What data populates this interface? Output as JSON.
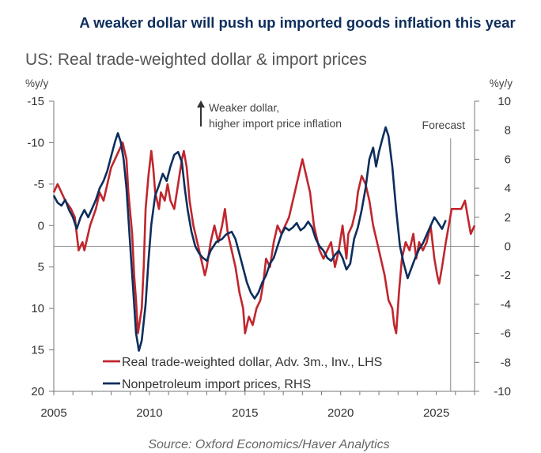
{
  "headline": "A weaker dollar will push up imported goods inflation this year",
  "source": "Source: Oxford Economics/Haver Analytics",
  "colors": {
    "dollar": "#c0262d",
    "imports": "#0d2e5c",
    "headline": "#0d2e5c",
    "axis": "#777777"
  },
  "chart_data": {
    "type": "line",
    "title": "US: Real trade-weighted dollar & import prices",
    "left_unit": "%y/y",
    "right_unit": "%y/y",
    "left_axis": {
      "inverted": true,
      "range": [
        -15,
        20
      ],
      "ticks": [
        -15,
        -10,
        -5,
        0,
        5,
        10,
        15,
        20
      ],
      "tick_labels": [
        "-15",
        "-10",
        "-5",
        "0",
        "5",
        "10",
        "15",
        "20"
      ]
    },
    "right_axis": {
      "range": [
        -10,
        10
      ],
      "ticks": [
        10,
        8,
        6,
        4,
        2,
        0,
        -2,
        -4,
        -6,
        -8,
        -10
      ],
      "tick_labels": [
        "10",
        "8",
        "6",
        "4",
        "2",
        "0",
        "-2",
        "-4",
        "-6",
        "-8",
        "-10"
      ]
    },
    "x_axis": {
      "range": [
        2005,
        2027
      ],
      "ticks": [
        2005,
        2010,
        2015,
        2020,
        2025
      ],
      "tick_labels": [
        "2005",
        "2010",
        "2015",
        "2020",
        "2025"
      ]
    },
    "annotation": {
      "line1": "Weaker dollar,",
      "line2": "higher import price inflation"
    },
    "forecast": {
      "label": "Forecast",
      "x": 2025.75
    },
    "legend": [
      {
        "name": "Real trade-weighted dollar, Adv. 3m., Inv., LHS",
        "color": "#c0262d"
      },
      {
        "name": "Nonpetroleum import prices, RHS",
        "color": "#0d2e5c"
      }
    ],
    "series": [
      {
        "name": "Real trade-weighted dollar, Adv. 3m., Inv., LHS",
        "axis": "left",
        "color": "#c0262d",
        "points": [
          [
            2005.0,
            -4
          ],
          [
            2005.2,
            -5
          ],
          [
            2005.4,
            -4
          ],
          [
            2005.6,
            -3
          ],
          [
            2005.9,
            -2
          ],
          [
            2006.1,
            -1
          ],
          [
            2006.2,
            1
          ],
          [
            2006.3,
            3
          ],
          [
            2006.5,
            2
          ],
          [
            2006.6,
            3
          ],
          [
            2006.9,
            0
          ],
          [
            2007.2,
            -2
          ],
          [
            2007.4,
            -4
          ],
          [
            2007.6,
            -3
          ],
          [
            2007.8,
            -5
          ],
          [
            2008.0,
            -7
          ],
          [
            2008.2,
            -8
          ],
          [
            2008.4,
            -9
          ],
          [
            2008.6,
            -10
          ],
          [
            2008.8,
            -8
          ],
          [
            2008.9,
            -4
          ],
          [
            2009.1,
            1
          ],
          [
            2009.2,
            6
          ],
          [
            2009.3,
            9
          ],
          [
            2009.4,
            13
          ],
          [
            2009.6,
            10
          ],
          [
            2009.7,
            5
          ],
          [
            2009.8,
            -2
          ],
          [
            2009.95,
            -6
          ],
          [
            2010.1,
            -9
          ],
          [
            2010.2,
            -7
          ],
          [
            2010.3,
            -4
          ],
          [
            2010.5,
            -2
          ],
          [
            2010.6,
            -4
          ],
          [
            2010.8,
            -3
          ],
          [
            2010.95,
            -5
          ],
          [
            2011.1,
            -3
          ],
          [
            2011.3,
            -2
          ],
          [
            2011.5,
            -5
          ],
          [
            2011.7,
            -8
          ],
          [
            2011.8,
            -9
          ],
          [
            2011.95,
            -7
          ],
          [
            2012.1,
            -3
          ],
          [
            2012.3,
            0
          ],
          [
            2012.5,
            2
          ],
          [
            2012.7,
            4
          ],
          [
            2012.9,
            6
          ],
          [
            2013.0,
            5
          ],
          [
            2013.2,
            2
          ],
          [
            2013.4,
            0
          ],
          [
            2013.6,
            2
          ],
          [
            2013.8,
            0
          ],
          [
            2013.95,
            -2
          ],
          [
            2014.1,
            1
          ],
          [
            2014.3,
            3
          ],
          [
            2014.5,
            5
          ],
          [
            2014.7,
            8
          ],
          [
            2014.9,
            10
          ],
          [
            2015.0,
            13
          ],
          [
            2015.2,
            11
          ],
          [
            2015.4,
            12
          ],
          [
            2015.6,
            10
          ],
          [
            2015.8,
            9
          ],
          [
            2015.95,
            7
          ],
          [
            2016.1,
            4
          ],
          [
            2016.3,
            5
          ],
          [
            2016.5,
            2
          ],
          [
            2016.7,
            0
          ],
          [
            2016.9,
            1
          ],
          [
            2017.1,
            0
          ],
          [
            2017.3,
            -1
          ],
          [
            2017.6,
            -4
          ],
          [
            2017.8,
            -6
          ],
          [
            2017.9,
            -7
          ],
          [
            2018.0,
            -8
          ],
          [
            2018.2,
            -6
          ],
          [
            2018.4,
            -4
          ],
          [
            2018.6,
            0
          ],
          [
            2018.9,
            3
          ],
          [
            2019.1,
            4
          ],
          [
            2019.3,
            3
          ],
          [
            2019.5,
            2
          ],
          [
            2019.7,
            5
          ],
          [
            2019.9,
            3
          ],
          [
            2020.1,
            0
          ],
          [
            2020.3,
            4
          ],
          [
            2020.4,
            1
          ],
          [
            2020.6,
            0
          ],
          [
            2020.8,
            -2
          ],
          [
            2020.9,
            -4
          ],
          [
            2021.1,
            -6
          ],
          [
            2021.3,
            -5
          ],
          [
            2021.5,
            -3
          ],
          [
            2021.7,
            0
          ],
          [
            2021.9,
            2
          ],
          [
            2022.1,
            4
          ],
          [
            2022.3,
            6
          ],
          [
            2022.5,
            9
          ],
          [
            2022.7,
            10
          ],
          [
            2022.8,
            12
          ],
          [
            2022.9,
            13
          ],
          [
            2023.05,
            8
          ],
          [
            2023.2,
            4
          ],
          [
            2023.4,
            2
          ],
          [
            2023.6,
            3
          ],
          [
            2023.8,
            1
          ],
          [
            2023.95,
            4
          ],
          [
            2024.1,
            2
          ],
          [
            2024.3,
            3
          ],
          [
            2024.5,
            2
          ],
          [
            2024.7,
            0
          ],
          [
            2024.9,
            4
          ],
          [
            2025.05,
            6
          ],
          [
            2025.15,
            7
          ],
          [
            2025.3,
            5
          ],
          [
            2025.5,
            2
          ],
          [
            2025.65,
            0
          ],
          [
            2025.8,
            -2
          ],
          [
            2026.0,
            -2
          ],
          [
            2026.3,
            -2
          ],
          [
            2026.5,
            -3
          ],
          [
            2026.65,
            -1
          ],
          [
            2026.8,
            1
          ],
          [
            2027.0,
            0
          ]
        ]
      },
      {
        "name": "Nonpetroleum import prices, RHS",
        "axis": "right",
        "color": "#0d2e5c",
        "points": [
          [
            2005.0,
            3.5
          ],
          [
            2005.2,
            3
          ],
          [
            2005.4,
            2.8
          ],
          [
            2005.6,
            3.2
          ],
          [
            2005.8,
            2.5
          ],
          [
            2006.0,
            2
          ],
          [
            2006.2,
            1.2
          ],
          [
            2006.4,
            2
          ],
          [
            2006.6,
            2.5
          ],
          [
            2006.8,
            2
          ],
          [
            2007.0,
            2.6
          ],
          [
            2007.2,
            3.2
          ],
          [
            2007.4,
            4
          ],
          [
            2007.6,
            4.5
          ],
          [
            2007.8,
            5.2
          ],
          [
            2008.0,
            6.2
          ],
          [
            2008.2,
            7.2
          ],
          [
            2008.35,
            7.8
          ],
          [
            2008.5,
            7.2
          ],
          [
            2008.65,
            6
          ],
          [
            2008.8,
            4
          ],
          [
            2009.0,
            0
          ],
          [
            2009.15,
            -3
          ],
          [
            2009.3,
            -6
          ],
          [
            2009.45,
            -7.2
          ],
          [
            2009.6,
            -6.5
          ],
          [
            2009.8,
            -4
          ],
          [
            2009.95,
            -1
          ],
          [
            2010.1,
            1.5
          ],
          [
            2010.3,
            3.5
          ],
          [
            2010.5,
            4.2
          ],
          [
            2010.7,
            5
          ],
          [
            2010.9,
            4.5
          ],
          [
            2011.1,
            5.5
          ],
          [
            2011.3,
            6.3
          ],
          [
            2011.5,
            6.5
          ],
          [
            2011.7,
            5.8
          ],
          [
            2011.85,
            4
          ],
          [
            2012.0,
            2.5
          ],
          [
            2012.2,
            1
          ],
          [
            2012.4,
            0
          ],
          [
            2012.6,
            -0.5
          ],
          [
            2012.8,
            -0.8
          ],
          [
            2013.0,
            -1
          ],
          [
            2013.2,
            -0.3
          ],
          [
            2013.5,
            0.3
          ],
          [
            2013.8,
            0.5
          ],
          [
            2014.0,
            0.8
          ],
          [
            2014.3,
            1
          ],
          [
            2014.5,
            0.5
          ],
          [
            2014.7,
            -0.5
          ],
          [
            2014.9,
            -1.5
          ],
          [
            2015.1,
            -2.5
          ],
          [
            2015.3,
            -3.2
          ],
          [
            2015.5,
            -3.6
          ],
          [
            2015.7,
            -3.2
          ],
          [
            2015.9,
            -2.5
          ],
          [
            2016.1,
            -2
          ],
          [
            2016.3,
            -1.2
          ],
          [
            2016.5,
            -0.8
          ],
          [
            2016.7,
            0
          ],
          [
            2016.9,
            0.8
          ],
          [
            2017.1,
            1.3
          ],
          [
            2017.3,
            1.1
          ],
          [
            2017.5,
            1.3
          ],
          [
            2017.7,
            1.6
          ],
          [
            2017.9,
            1.1
          ],
          [
            2018.1,
            1.3
          ],
          [
            2018.3,
            1.7
          ],
          [
            2018.5,
            1.3
          ],
          [
            2018.7,
            0.5
          ],
          [
            2018.9,
            0
          ],
          [
            2019.1,
            -0.3
          ],
          [
            2019.3,
            -0.8
          ],
          [
            2019.5,
            -1
          ],
          [
            2019.7,
            -0.6
          ],
          [
            2019.9,
            -0.3
          ],
          [
            2020.1,
            -0.8
          ],
          [
            2020.3,
            -1.6
          ],
          [
            2020.5,
            -1.2
          ],
          [
            2020.7,
            0.5
          ],
          [
            2020.9,
            1.3
          ],
          [
            2021.1,
            2.5
          ],
          [
            2021.3,
            4
          ],
          [
            2021.5,
            6
          ],
          [
            2021.7,
            6.8
          ],
          [
            2021.85,
            5.5
          ],
          [
            2022.0,
            6.5
          ],
          [
            2022.2,
            7.5
          ],
          [
            2022.35,
            8.2
          ],
          [
            2022.5,
            7.6
          ],
          [
            2022.7,
            5.5
          ],
          [
            2022.9,
            2.5
          ],
          [
            2023.1,
            0
          ],
          [
            2023.3,
            -1.2
          ],
          [
            2023.5,
            -2.2
          ],
          [
            2023.7,
            -1.5
          ],
          [
            2023.9,
            -0.8
          ],
          [
            2024.1,
            -0.2
          ],
          [
            2024.3,
            0.2
          ],
          [
            2024.5,
            0.8
          ],
          [
            2024.7,
            1.4
          ],
          [
            2024.9,
            2
          ],
          [
            2025.1,
            1.6
          ],
          [
            2025.3,
            1.2
          ],
          [
            2025.5,
            1.8
          ]
        ]
      }
    ]
  }
}
